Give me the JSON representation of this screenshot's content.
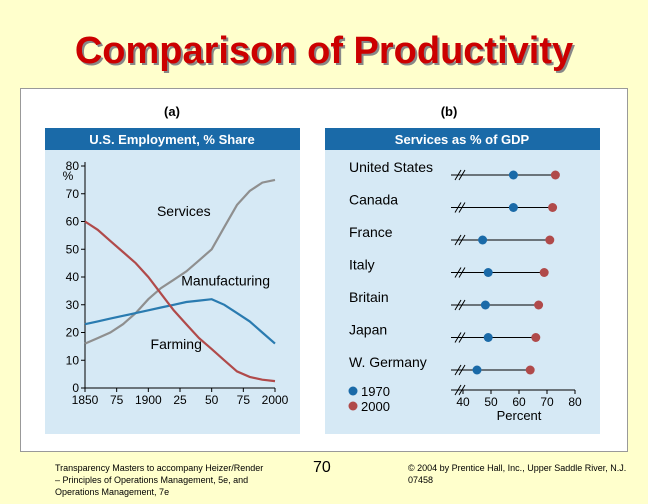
{
  "slide": {
    "title": "Comparison of Productivity",
    "footer_left": "Transparency Masters to accompany Heizer/Render – Principles of Operations Management, 5e, and Operations Management, 7e",
    "page_number": "70",
    "footer_right": "© 2004 by Prentice Hall, Inc., Upper Saddle River, N.J. 07458"
  },
  "colors": {
    "panel_bg": "#d6e9f5",
    "header_bg": "#1a6aa8",
    "header_text": "#ffffff",
    "title_red": "#cc0000",
    "services_line": "#8f8f8f",
    "manufacturing_line": "#2a7bb0",
    "farming_line": "#b04a4a",
    "dot_1970": "#1a6aa8",
    "dot_2000": "#b04a4a"
  },
  "chart_data": [
    {
      "type": "line",
      "panel_label": "(a)",
      "title": "U.S. Employment, % Share",
      "ylabel": "%",
      "xlabel": "",
      "xlim": [
        1850,
        2000
      ],
      "ylim": [
        0,
        80
      ],
      "x_ticks": [
        1850,
        1875,
        1900,
        1925,
        1950,
        1975,
        2000
      ],
      "x_tick_labels": [
        "1850",
        "75",
        "1900",
        "25",
        "50",
        "75",
        "2000"
      ],
      "y_ticks": [
        0,
        10,
        20,
        30,
        40,
        50,
        60,
        70,
        80
      ],
      "y_tick_labels": [
        "0",
        "10",
        "20",
        "30",
        "40",
        "50",
        "60",
        "70",
        "80"
      ],
      "series": [
        {
          "name": "Services",
          "x": [
            1850,
            1860,
            1870,
            1880,
            1890,
            1900,
            1910,
            1920,
            1930,
            1940,
            1950,
            1960,
            1970,
            1980,
            1990,
            2000
          ],
          "values": [
            16,
            18,
            20,
            23,
            27,
            32,
            36,
            39,
            42,
            46,
            50,
            58,
            66,
            71,
            74,
            75
          ]
        },
        {
          "name": "Manufacturing",
          "x": [
            1850,
            1860,
            1870,
            1880,
            1890,
            1900,
            1910,
            1920,
            1930,
            1940,
            1950,
            1960,
            1970,
            1980,
            1990,
            2000
          ],
          "values": [
            23,
            24,
            25,
            26,
            27,
            28,
            29,
            30,
            31,
            31.5,
            32,
            30,
            27,
            24,
            20,
            16
          ]
        },
        {
          "name": "Farming",
          "x": [
            1850,
            1860,
            1870,
            1880,
            1890,
            1900,
            1910,
            1920,
            1930,
            1940,
            1950,
            1960,
            1970,
            1980,
            1990,
            2000
          ],
          "values": [
            60,
            57,
            53,
            49,
            45,
            40,
            34,
            28,
            23,
            18,
            14,
            10,
            6,
            4,
            3,
            2.5
          ]
        }
      ]
    },
    {
      "type": "scatter",
      "panel_label": "(b)",
      "title": "Services as % of GDP",
      "xlabel": "Percent",
      "xlim": [
        40,
        80
      ],
      "x_ticks": [
        40,
        50,
        60,
        70,
        80
      ],
      "x_tick_labels": [
        "40",
        "50",
        "60",
        "70",
        "80"
      ],
      "categories": [
        "United States",
        "Canada",
        "France",
        "Italy",
        "Britain",
        "Japan",
        "W. Germany"
      ],
      "series": [
        {
          "name": "1970",
          "values": [
            58,
            58,
            47,
            49,
            48,
            49,
            45
          ]
        },
        {
          "name": "2000",
          "values": [
            73,
            72,
            71,
            69,
            67,
            66,
            64
          ]
        }
      ],
      "legend": [
        "1970",
        "2000"
      ],
      "legend_placement": "bottom-left"
    }
  ]
}
